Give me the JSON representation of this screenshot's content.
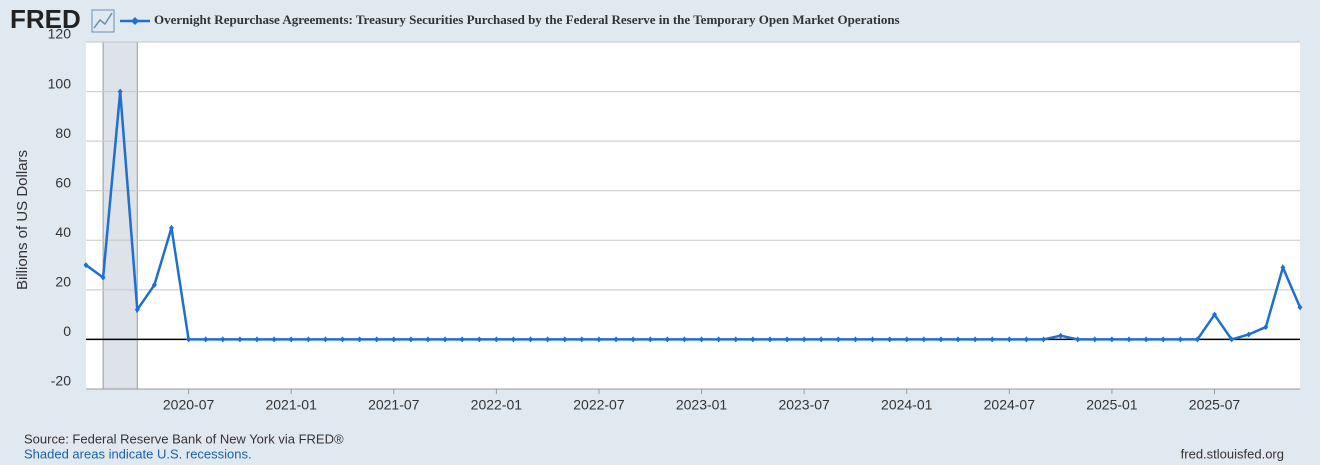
{
  "brand": "FRED",
  "chart_data": {
    "type": "line",
    "y_label": "Billions of US Dollars",
    "source": "Source: Federal Reserve Bank of New York via FRED®",
    "note": "Shaded areas indicate U.S. recessions.",
    "url": "fred.stlouisfed.org",
    "x": [
      "2020-01",
      "2020-02",
      "2020-03",
      "2020-04",
      "2020-05",
      "2020-06",
      "2020-07",
      "2020-08",
      "2020-09",
      "2020-10",
      "2020-11",
      "2020-12",
      "2021-01",
      "2021-02",
      "2021-03",
      "2021-04",
      "2021-05",
      "2021-06",
      "2021-07",
      "2021-08",
      "2021-09",
      "2021-10",
      "2021-11",
      "2021-12",
      "2022-01",
      "2022-02",
      "2022-03",
      "2022-04",
      "2022-05",
      "2022-06",
      "2022-07",
      "2022-08",
      "2022-09",
      "2022-10",
      "2022-11",
      "2022-12",
      "2023-01",
      "2023-02",
      "2023-03",
      "2023-04",
      "2023-05",
      "2023-06",
      "2023-07",
      "2023-08",
      "2023-09",
      "2023-10",
      "2023-11",
      "2023-12",
      "2024-01",
      "2024-02",
      "2024-03",
      "2024-04",
      "2024-05",
      "2024-06",
      "2024-07",
      "2024-08",
      "2024-09",
      "2024-10",
      "2024-11",
      "2024-12",
      "2025-01",
      "2025-02",
      "2025-03",
      "2025-04",
      "2025-05",
      "2025-06",
      "2025-07",
      "2025-08",
      "2025-09",
      "2025-10",
      "2025-11",
      "2025-12"
    ],
    "series": [
      {
        "name": "Overnight Repurchase Agreements: Treasury Securities Purchased by the Federal Reserve in the Temporary Open Market Operations",
        "color": "#1f6fd1",
        "values": [
          30,
          25,
          100,
          12,
          22,
          45,
          0,
          0,
          0,
          0,
          0,
          0,
          0,
          0,
          0,
          0,
          0,
          0,
          0,
          0,
          0,
          0,
          0,
          0,
          0,
          0,
          0,
          0,
          0,
          0,
          0,
          0,
          0,
          0,
          0,
          0,
          0,
          0,
          0,
          0,
          0,
          0,
          0,
          0,
          0,
          0,
          0,
          0,
          0,
          0,
          0,
          0,
          0,
          0,
          0,
          0,
          0,
          1.5,
          0,
          0,
          0,
          0,
          0,
          0,
          0,
          0,
          10,
          0,
          2,
          5,
          29,
          13
        ]
      }
    ],
    "xlim": [
      "2020-01",
      "2025-12"
    ],
    "xticks": [
      "2020-07",
      "2021-01",
      "2021-07",
      "2022-01",
      "2022-07",
      "2023-01",
      "2023-07",
      "2024-01",
      "2024-07",
      "2025-01",
      "2025-07"
    ],
    "ylim": [
      -20,
      120
    ],
    "yticks": [
      -20,
      0,
      20,
      40,
      60,
      80,
      100,
      120
    ],
    "grid": true,
    "recessions": [
      [
        "2020-02",
        "2020-04"
      ]
    ]
  }
}
